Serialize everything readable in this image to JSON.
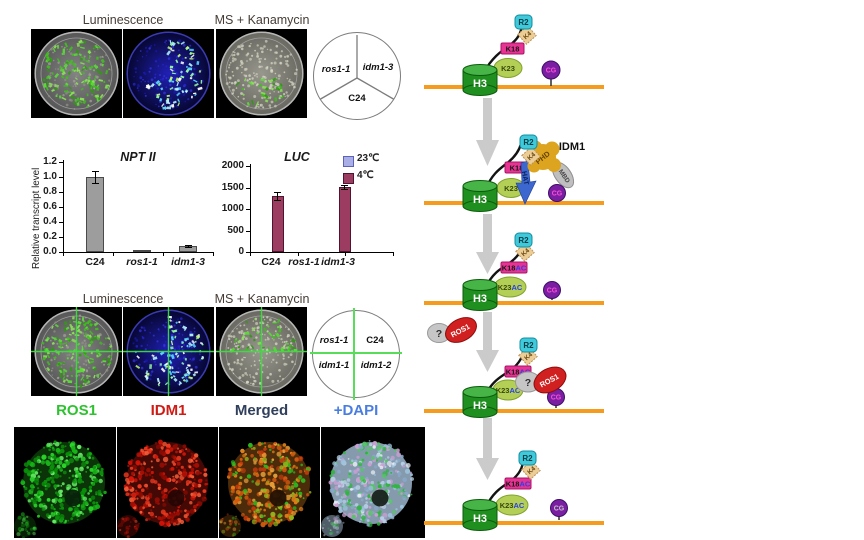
{
  "figure_labels": {
    "panel_a_luminescence": "Luminescence",
    "panel_a_kanamycin": "MS + Kanamycin",
    "panel_c_luminescence": "Luminescence",
    "panel_c_kanamycin": "MS + Kanamycin"
  },
  "sector_legend": {
    "left": "ros1-1",
    "right": "idm1-3",
    "bottom": "C24"
  },
  "quadrant_legend": {
    "top_left": "ros1-1",
    "top_right": "C24",
    "bottom_left": "idm1-1",
    "bottom_right": "idm1-2"
  },
  "microscopy_labels": {
    "ros1": {
      "text": "ROS1",
      "color": "#2ec230"
    },
    "idm1": {
      "text": "IDM1",
      "color": "#d01b14"
    },
    "merged": {
      "text": "Merged",
      "color": "#2f3f5c"
    },
    "dapi": {
      "text": "+DAPI",
      "color": "#4a7de0"
    }
  },
  "pathway": {
    "h3": "H3",
    "r2": "R2",
    "k4": "K4",
    "k18": "K18",
    "k23": "K23",
    "ac": "AC",
    "cg": "CG",
    "phd": "PHD",
    "mbd": "MBD",
    "hat": "HAT",
    "idm1": "IDM1",
    "ros1": "ROS1",
    "unknown": "?"
  },
  "colors": {
    "dna_line": "#F59B1E",
    "h3_green": "#1f8f1f",
    "cg_purple": "#7b1fa2",
    "r2_cyan": "#3fc9da",
    "k18_magenta": "#e73493",
    "k23_green": "#b3cf56",
    "k4_tan": "#eccd96",
    "idm1_gold": "#dca41f",
    "mbd_gray": "#bfbfbf",
    "hat_blue": "#3c67cf",
    "ros1_red": "#d02020",
    "arrow_gray": "#cbcbcb",
    "dish_cross_green": "#3ae03a"
  },
  "chart_data": [
    {
      "type": "bar",
      "title": "NPT II",
      "ylabel": "Relative transcript level",
      "categories": [
        "C24",
        "ros1-1",
        "idm1-3"
      ],
      "categories_italic": [
        false,
        true,
        true
      ],
      "values": [
        1.0,
        0.03,
        0.08
      ],
      "errors": [
        0.08,
        0.0,
        0.01
      ],
      "bar_color": "#9d9d9d",
      "bar_border": "#4a4a4a",
      "ylim": [
        0,
        1.2
      ],
      "yticks": [
        0,
        0.2,
        0.4,
        0.6,
        0.8,
        1.0,
        1.2
      ],
      "ytick_labels": [
        "0.0",
        "0.2",
        "0.4",
        "0.6",
        "0.8",
        "1.0",
        "1.2"
      ],
      "grid": false
    },
    {
      "type": "bar",
      "title": "LUC",
      "ylabel": "",
      "categories": [
        "C24",
        "ros1-1",
        "idm1-3"
      ],
      "categories_italic": [
        false,
        true,
        true
      ],
      "series": [
        {
          "name": "23℃",
          "color": "#a9aee6",
          "border": "#5b62b8",
          "values": [
            0,
            0,
            0
          ],
          "errors": [
            0,
            0,
            0
          ]
        },
        {
          "name": "4℃",
          "color": "#9c3c60",
          "border": "#4f1530",
          "values": [
            1300,
            0,
            1510
          ],
          "errors": [
            90,
            0,
            40
          ]
        }
      ],
      "ylim": [
        0,
        2000
      ],
      "yticks": [
        0,
        500,
        1000,
        1500,
        2000
      ],
      "ytick_labels": [
        "0",
        "500",
        "1000",
        "1500",
        "2000"
      ],
      "legend_position": "top-right",
      "grid": false
    }
  ]
}
